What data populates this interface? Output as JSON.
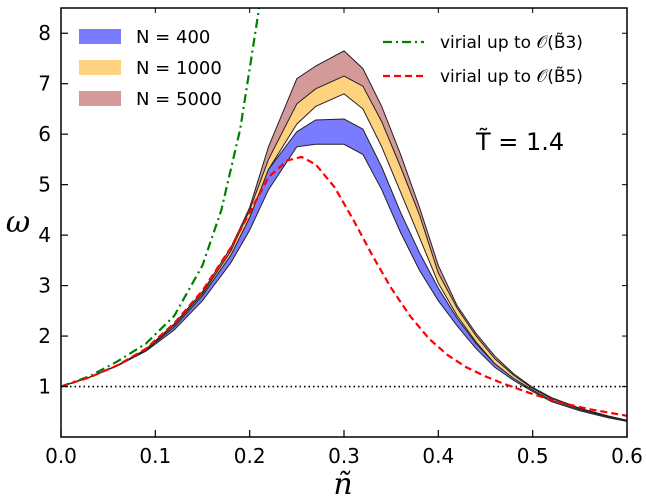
{
  "chart_data": {
    "type": "line",
    "xlabel": "ñ",
    "ylabel": "ω",
    "xlim": [
      0.0,
      0.6
    ],
    "ylim": [
      0.0,
      8.5
    ],
    "xticks": [
      "0.0",
      "0.1",
      "0.2",
      "0.3",
      "0.4",
      "0.5",
      "0.6"
    ],
    "yticks": [
      "1",
      "2",
      "3",
      "4",
      "5",
      "6",
      "7",
      "8"
    ],
    "grid": false,
    "annotation": "T̃ = 1.4",
    "legend_left": {
      "position": "top-left",
      "entries": [
        {
          "label": "N = 400",
          "color": "#7b7bff"
        },
        {
          "label": "N = 1000",
          "color": "#ffd27f"
        },
        {
          "label": "N = 5000",
          "color": "#d49a9a"
        }
      ]
    },
    "legend_right": {
      "position": "top-right",
      "entries": [
        {
          "label": "virial up to 𝒪(B̃3)",
          "color": "#007f00"
        },
        {
          "label": "virial up to 𝒪(B̃5)",
          "color": "#ff0000"
        }
      ]
    },
    "reference_line": {
      "y": 1.0,
      "style": "dotted",
      "color": "#000000"
    },
    "bands": [
      {
        "name": "N = 5000",
        "color": "#d49a9a",
        "x": [
          0.0,
          0.03,
          0.06,
          0.09,
          0.12,
          0.15,
          0.18,
          0.2,
          0.22,
          0.25,
          0.27,
          0.3,
          0.32,
          0.34,
          0.36,
          0.38,
          0.4,
          0.42,
          0.44,
          0.46,
          0.48,
          0.5,
          0.52,
          0.55,
          0.58,
          0.6
        ],
        "lower": [
          1.0,
          1.18,
          1.42,
          1.72,
          2.2,
          2.8,
          3.6,
          4.4,
          5.4,
          6.4,
          6.8,
          7.0,
          6.7,
          6.0,
          5.1,
          4.2,
          3.2,
          2.5,
          1.95,
          1.5,
          1.2,
          0.95,
          0.75,
          0.55,
          0.4,
          0.32
        ],
        "upper": [
          1.0,
          1.18,
          1.42,
          1.74,
          2.24,
          2.88,
          3.75,
          4.55,
          5.75,
          7.1,
          7.35,
          7.65,
          7.3,
          6.55,
          5.6,
          4.55,
          3.4,
          2.6,
          2.05,
          1.6,
          1.25,
          0.98,
          0.78,
          0.57,
          0.42,
          0.33
        ]
      },
      {
        "name": "N = 1000",
        "color": "#ffd27f",
        "x": [
          0.0,
          0.03,
          0.06,
          0.09,
          0.12,
          0.15,
          0.18,
          0.2,
          0.22,
          0.25,
          0.27,
          0.3,
          0.32,
          0.34,
          0.36,
          0.38,
          0.4,
          0.42,
          0.44,
          0.46,
          0.48,
          0.5,
          0.52,
          0.55,
          0.58,
          0.6
        ],
        "lower": [
          1.0,
          1.18,
          1.42,
          1.72,
          2.18,
          2.78,
          3.55,
          4.3,
          5.3,
          6.2,
          6.55,
          6.8,
          6.5,
          5.75,
          4.85,
          3.95,
          3.05,
          2.4,
          1.88,
          1.45,
          1.15,
          0.92,
          0.72,
          0.53,
          0.39,
          0.32
        ],
        "upper": [
          1.0,
          1.18,
          1.42,
          1.73,
          2.22,
          2.84,
          3.68,
          4.5,
          5.5,
          6.6,
          6.9,
          7.15,
          6.95,
          6.25,
          5.35,
          4.4,
          3.25,
          2.55,
          2.0,
          1.55,
          1.22,
          0.96,
          0.76,
          0.56,
          0.41,
          0.33
        ]
      },
      {
        "name": "N = 400",
        "color": "#7b7bff",
        "x": [
          0.0,
          0.03,
          0.06,
          0.09,
          0.12,
          0.15,
          0.18,
          0.2,
          0.22,
          0.25,
          0.27,
          0.3,
          0.32,
          0.34,
          0.36,
          0.38,
          0.4,
          0.42,
          0.44,
          0.46,
          0.48,
          0.5,
          0.52,
          0.55,
          0.58,
          0.6
        ],
        "lower": [
          1.0,
          1.18,
          1.41,
          1.7,
          2.12,
          2.7,
          3.45,
          4.1,
          4.9,
          5.75,
          5.8,
          5.8,
          5.6,
          4.9,
          4.05,
          3.3,
          2.7,
          2.2,
          1.75,
          1.38,
          1.12,
          0.9,
          0.7,
          0.52,
          0.38,
          0.31
        ],
        "upper": [
          1.0,
          1.18,
          1.42,
          1.72,
          2.18,
          2.8,
          3.6,
          4.35,
          5.3,
          6.05,
          6.28,
          6.3,
          6.1,
          5.35,
          4.45,
          3.65,
          2.95,
          2.35,
          1.85,
          1.45,
          1.16,
          0.93,
          0.73,
          0.54,
          0.4,
          0.32
        ]
      }
    ],
    "lines": [
      {
        "name": "virial up to 𝒪(B̃3)",
        "color": "#007f00",
        "style": "dashdot",
        "x": [
          0.0,
          0.03,
          0.06,
          0.09,
          0.12,
          0.15,
          0.17,
          0.19,
          0.2,
          0.205,
          0.21
        ],
        "y": [
          1.0,
          1.2,
          1.5,
          1.85,
          2.4,
          3.4,
          4.5,
          6.1,
          7.3,
          7.9,
          8.5
        ]
      },
      {
        "name": "virial up to 𝒪(B̃5)",
        "color": "#ff0000",
        "style": "dashed",
        "x": [
          0.0,
          0.03,
          0.06,
          0.09,
          0.12,
          0.15,
          0.18,
          0.2,
          0.22,
          0.24,
          0.255,
          0.27,
          0.29,
          0.31,
          0.33,
          0.35,
          0.37,
          0.39,
          0.41,
          0.43,
          0.45,
          0.47,
          0.5,
          0.53,
          0.56,
          0.6
        ],
        "y": [
          1.0,
          1.18,
          1.42,
          1.75,
          2.25,
          2.9,
          3.75,
          4.45,
          5.15,
          5.48,
          5.55,
          5.4,
          4.95,
          4.3,
          3.6,
          2.95,
          2.4,
          1.95,
          1.62,
          1.38,
          1.2,
          1.05,
          0.85,
          0.68,
          0.55,
          0.42
        ]
      }
    ]
  }
}
